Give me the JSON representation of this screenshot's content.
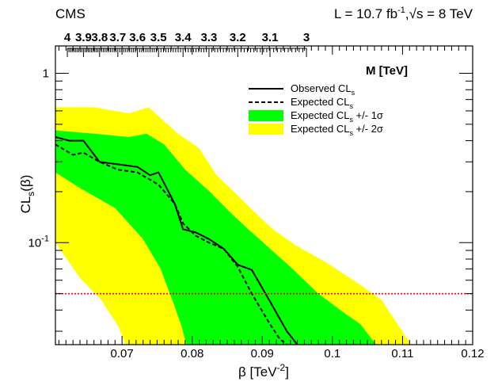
{
  "header": {
    "experiment": "CMS",
    "lumi_text": "L = 10.7 fb",
    "lumi_sup": "-1",
    "energy_text": ",√s = 8 TeV"
  },
  "colors": {
    "band_2sigma": "#ffff00",
    "band_1sigma": "#00ff00",
    "observed": "#000000",
    "expected": "#000000",
    "threshold": "#ff0000"
  },
  "chart_data": {
    "type": "line",
    "ylog": true,
    "xlim": [
      0.0605,
      0.12
    ],
    "ylim": [
      0.025,
      1.45
    ],
    "xlabel_main": "β [TeV",
    "xlabel_sup": "-2",
    "xlabel_end": "]",
    "ylabel_main": "CL",
    "ylabel_sub": "s",
    "ylabel_end": "(β)",
    "x_ticks": [
      {
        "v": 0.07,
        "label": "0.07"
      },
      {
        "v": 0.08,
        "label": "0.08"
      },
      {
        "v": 0.09,
        "label": "0.09"
      },
      {
        "v": 0.1,
        "label": "0.1"
      },
      {
        "v": 0.11,
        "label": "0.11"
      },
      {
        "v": 0.12,
        "label": "0.12"
      }
    ],
    "y_ticks": [
      {
        "v": 0.1,
        "base": "10",
        "exp": "-1"
      },
      {
        "v": 1.0,
        "base": "1",
        "exp": ""
      }
    ],
    "top_axis": {
      "title": "M [TeV]",
      "ticks": [
        {
          "v": 0.0622,
          "label": "4"
        },
        {
          "v": 0.0645,
          "label": "3.9"
        },
        {
          "v": 0.0668,
          "label": "3.8"
        },
        {
          "v": 0.0694,
          "label": "3.7"
        },
        {
          "v": 0.0722,
          "label": "3.6"
        },
        {
          "v": 0.0752,
          "label": "3.5"
        },
        {
          "v": 0.0787,
          "label": "3.4"
        },
        {
          "v": 0.0824,
          "label": "3.3"
        },
        {
          "v": 0.0865,
          "label": "3.2"
        },
        {
          "v": 0.0911,
          "label": "3.1"
        },
        {
          "v": 0.0963,
          "label": "3"
        }
      ]
    },
    "threshold": 0.05,
    "legend": [
      {
        "kind": "line",
        "label": "Observed CL",
        "sub": "s"
      },
      {
        "kind": "dash",
        "label": "Expected CL",
        "sub": "s"
      },
      {
        "kind": "green",
        "label": "Expected CL",
        "sub": "s",
        "suffix": " +/- 1σ"
      },
      {
        "kind": "yellow",
        "label": "Expected CL",
        "sub": "s",
        "suffix": " +/- 2σ"
      }
    ],
    "series": [
      {
        "name": "Observed CL_s",
        "x": [
          0.0605,
          0.0625,
          0.0645,
          0.0668,
          0.0694,
          0.0722,
          0.074,
          0.0752,
          0.0775,
          0.0787,
          0.0805,
          0.0824,
          0.0845,
          0.0865,
          0.0885,
          0.0911,
          0.0935,
          0.095
        ],
        "y": [
          0.42,
          0.4,
          0.4,
          0.3,
          0.29,
          0.28,
          0.25,
          0.26,
          0.17,
          0.12,
          0.115,
          0.105,
          0.092,
          0.074,
          0.069,
          0.045,
          0.03,
          0.025
        ]
      },
      {
        "name": "Expected CL_s",
        "x": [
          0.0605,
          0.063,
          0.0645,
          0.0668,
          0.0694,
          0.0722,
          0.0752,
          0.0775,
          0.0787,
          0.0805,
          0.0824,
          0.0845,
          0.0865,
          0.0885,
          0.0911,
          0.0925,
          0.0935
        ],
        "y": [
          0.38,
          0.33,
          0.34,
          0.3,
          0.27,
          0.26,
          0.22,
          0.17,
          0.13,
          0.11,
          0.1,
          0.092,
          0.072,
          0.05,
          0.033,
          0.027,
          0.025
        ]
      }
    ],
    "bands": {
      "two_sigma": {
        "upper": [
          [
            0.0605,
            0.63
          ],
          [
            0.066,
            0.63
          ],
          [
            0.071,
            0.58
          ],
          [
            0.0738,
            0.63
          ],
          [
            0.0758,
            0.53
          ],
          [
            0.078,
            0.44
          ],
          [
            0.081,
            0.36
          ],
          [
            0.0835,
            0.25
          ],
          [
            0.0865,
            0.19
          ],
          [
            0.089,
            0.15
          ],
          [
            0.0915,
            0.12
          ],
          [
            0.095,
            0.095
          ],
          [
            0.099,
            0.077
          ],
          [
            0.103,
            0.06
          ],
          [
            0.107,
            0.046
          ],
          [
            0.1095,
            0.032
          ],
          [
            0.1112,
            0.025
          ]
        ],
        "lower": [
          [
            0.0605,
            0.1
          ],
          [
            0.064,
            0.062
          ],
          [
            0.067,
            0.046
          ],
          [
            0.0695,
            0.032
          ],
          [
            0.0705,
            0.025
          ]
        ]
      },
      "one_sigma": {
        "upper": [
          [
            0.0605,
            0.46
          ],
          [
            0.066,
            0.44
          ],
          [
            0.071,
            0.42
          ],
          [
            0.0735,
            0.44
          ],
          [
            0.076,
            0.38
          ],
          [
            0.079,
            0.27
          ],
          [
            0.0825,
            0.2
          ],
          [
            0.0855,
            0.15
          ],
          [
            0.088,
            0.12
          ],
          [
            0.0905,
            0.097
          ],
          [
            0.094,
            0.072
          ],
          [
            0.098,
            0.05
          ],
          [
            0.1015,
            0.039
          ],
          [
            0.104,
            0.033
          ],
          [
            0.1062,
            0.025
          ]
        ],
        "lower": [
          [
            0.0605,
            0.26
          ],
          [
            0.064,
            0.21
          ],
          [
            0.069,
            0.16
          ],
          [
            0.073,
            0.105
          ],
          [
            0.0755,
            0.07
          ],
          [
            0.0775,
            0.042
          ],
          [
            0.0785,
            0.032
          ],
          [
            0.0792,
            0.025
          ]
        ]
      }
    }
  }
}
